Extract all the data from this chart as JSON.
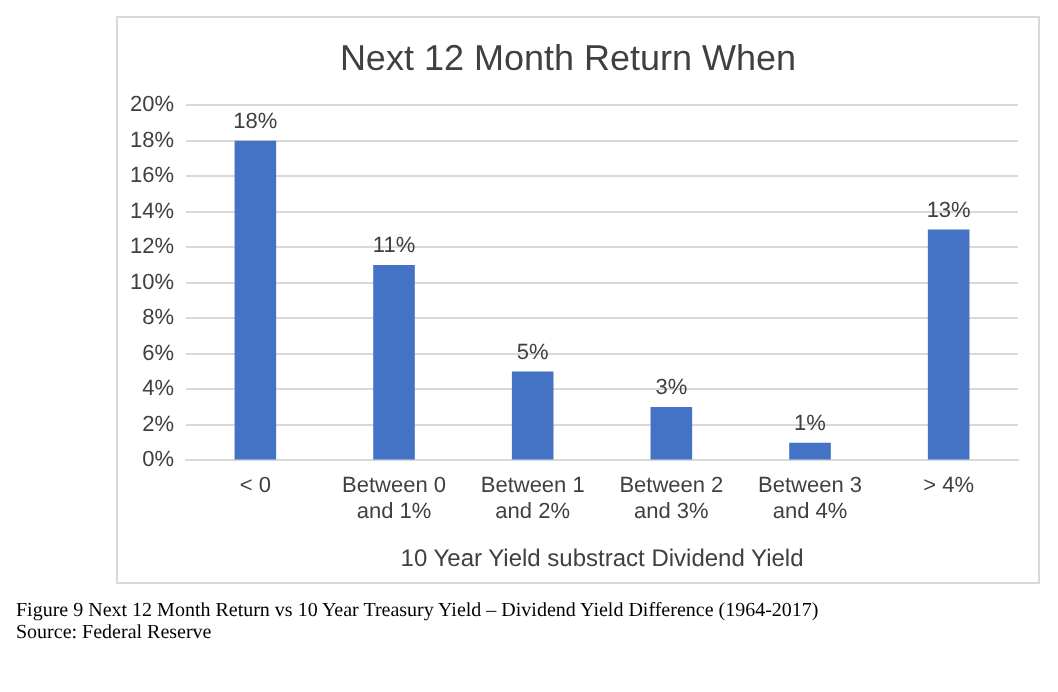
{
  "chart_data": {
    "type": "bar",
    "title": "Next 12 Month Return When",
    "xlabel": "10 Year Yield substract Dividend Yield",
    "categories": [
      "< 0",
      "Between 0 and 1%",
      "Between 1 and 2%",
      "Between 2 and 3%",
      "Between 3 and 4%",
      "> 4%"
    ],
    "values": [
      18,
      11,
      5,
      3,
      1,
      13
    ],
    "value_labels": [
      "18%",
      "11%",
      "5%",
      "3%",
      "1%",
      "13%"
    ],
    "color": "#4472c4",
    "ylim": [
      0,
      20
    ],
    "yticks": [
      {
        "value": 0,
        "label": "0%"
      },
      {
        "value": 2,
        "label": "2%"
      },
      {
        "value": 4,
        "label": "4%"
      },
      {
        "value": 6,
        "label": "6%"
      },
      {
        "value": 8,
        "label": "8%"
      },
      {
        "value": 10,
        "label": "10%"
      },
      {
        "value": 12,
        "label": "12%"
      },
      {
        "value": 14,
        "label": "14%"
      },
      {
        "value": 16,
        "label": "16%"
      },
      {
        "value": 18,
        "label": "18%"
      },
      {
        "value": 20,
        "label": "20%"
      }
    ],
    "grid": "y",
    "annotations": [
      "Figure 9 Next 12 Month Return vs 10 Year Treasury Yield – Dividend Yield Difference (1964-2017)",
      "Source: Federal Reserve"
    ]
  }
}
